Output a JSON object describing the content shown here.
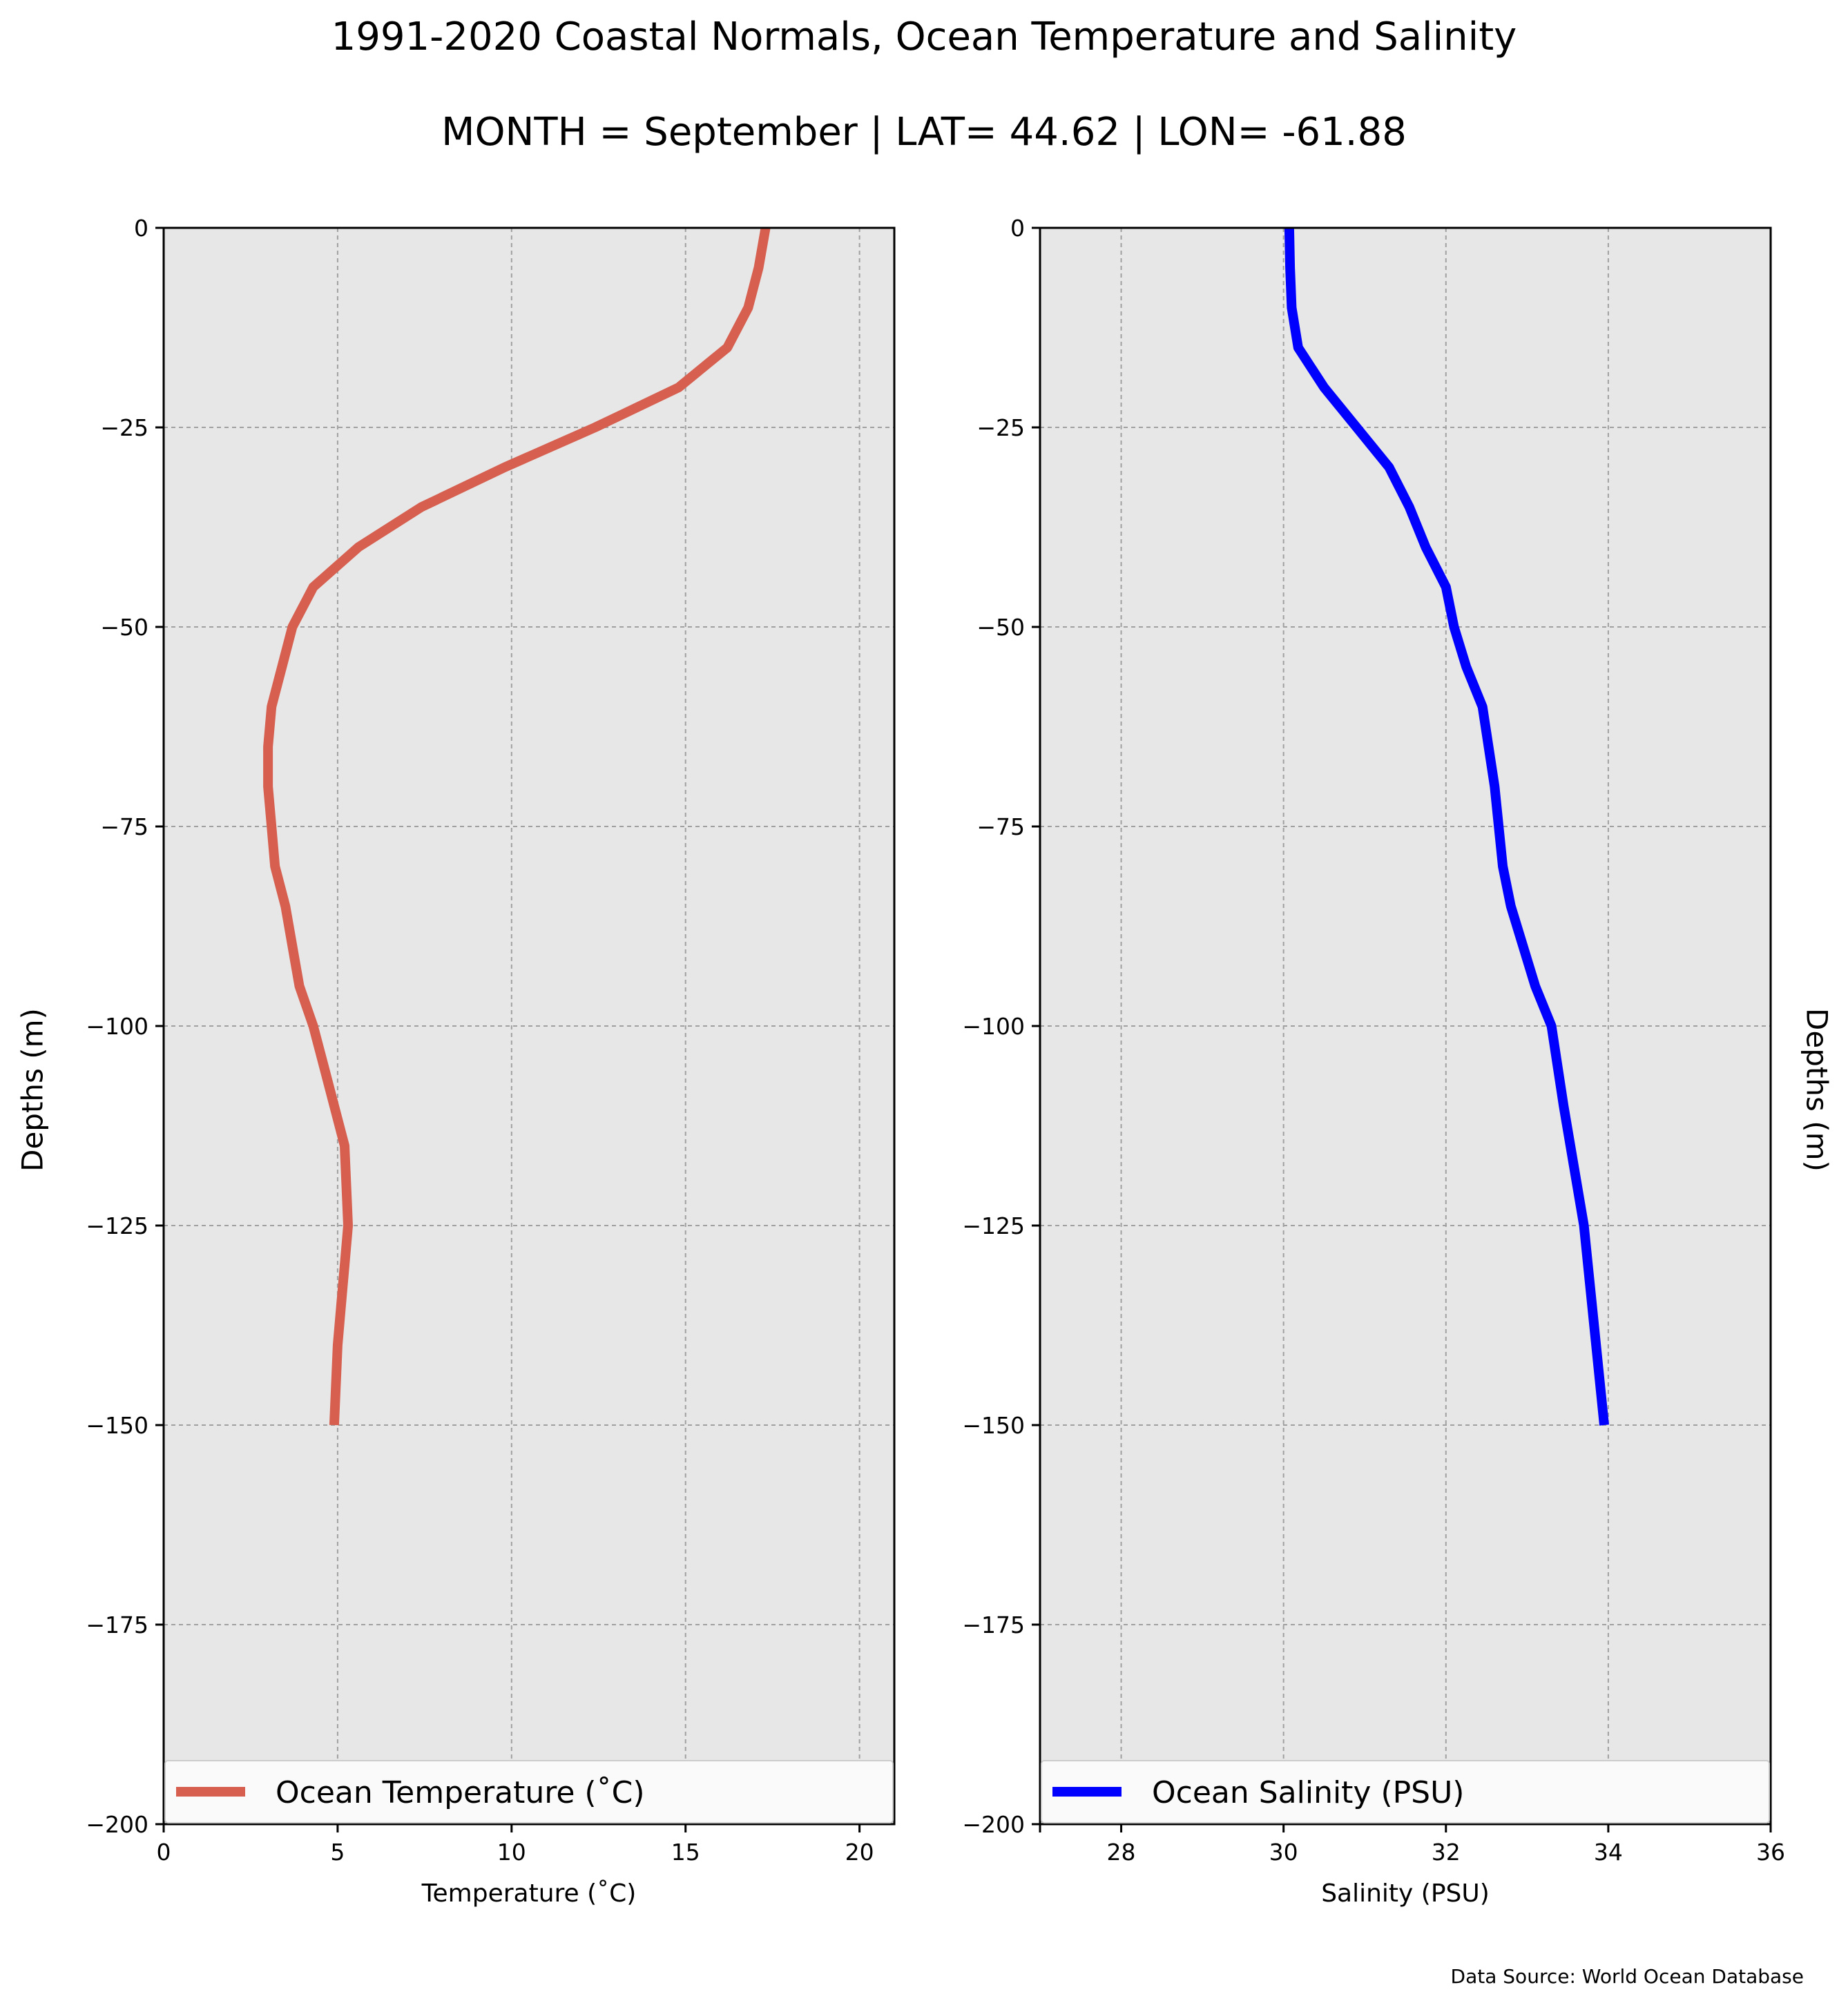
{
  "figure": {
    "title": "1991-2020 Coastal Normals, Ocean Temperature and Salinity",
    "subtitle": "MONTH = September | LAT= 44.62 | LON= -61.88",
    "source": "Data Source: World Ocean Database",
    "background": "#e7e7e7",
    "grid_color": "#a0a0a0"
  },
  "chart_data": [
    {
      "type": "line",
      "xlabel": "Temperature (˚C)",
      "ylabel": "Depths (m)",
      "xlim": [
        0,
        21
      ],
      "ylim": [
        -200,
        0
      ],
      "xticks": [
        0,
        5,
        10,
        15,
        20
      ],
      "yticks": [
        0,
        -25,
        -50,
        -75,
        -100,
        -125,
        -150,
        -175,
        -200
      ],
      "ytick_labels": [
        "0",
        "−25",
        "−50",
        "−75",
        "−100",
        "−125",
        "−150",
        "−175",
        "−200"
      ],
      "grid": true,
      "legend": "bottom",
      "series": [
        {
          "name": "Ocean Temperature (˚C)",
          "color": "#d65f4f",
          "x": [
            17.3,
            17.1,
            16.8,
            16.2,
            14.8,
            12.4,
            9.8,
            7.4,
            5.6,
            4.3,
            3.7,
            3.4,
            3.1,
            3.0,
            3.0,
            3.1,
            3.2,
            3.5,
            3.9,
            4.3,
            4.6,
            4.9,
            5.2,
            5.3,
            5.2,
            5.1,
            5.0,
            4.9
          ],
          "y": [
            0,
            -5,
            -10,
            -15,
            -20,
            -25,
            -30,
            -35,
            -40,
            -45,
            -50,
            -55,
            -60,
            -65,
            -70,
            -75,
            -80,
            -85,
            -95,
            -100,
            -105,
            -110,
            -115,
            -125,
            -130,
            -135,
            -140,
            -150
          ]
        }
      ]
    },
    {
      "type": "line",
      "xlabel": "Salinity (PSU)",
      "ylabel": "Depths (m)",
      "xlim": [
        27,
        36
      ],
      "ylim": [
        -200,
        0
      ],
      "xticks": [
        28,
        30,
        32,
        34,
        36
      ],
      "yticks": [
        0,
        -25,
        -50,
        -75,
        -100,
        -125,
        -150,
        -175,
        -200
      ],
      "ytick_labels": [
        "0",
        "−25",
        "−50",
        "−75",
        "−100",
        "−125",
        "−150",
        "−175",
        "−200"
      ],
      "grid": true,
      "legend": "bottom",
      "series": [
        {
          "name": "Ocean Salinity (PSU)",
          "color": "#0000ff",
          "x": [
            30.07,
            30.08,
            30.1,
            30.18,
            30.5,
            30.9,
            31.3,
            31.55,
            31.75,
            32.0,
            32.1,
            32.25,
            32.45,
            32.6,
            32.7,
            32.8,
            33.1,
            33.3,
            33.45,
            33.7,
            33.95
          ],
          "y": [
            0,
            -5,
            -10,
            -15,
            -20,
            -25,
            -30,
            -35,
            -40,
            -45,
            -50,
            -55,
            -60,
            -70,
            -80,
            -85,
            -95,
            -100,
            -110,
            -125,
            -150
          ]
        }
      ]
    }
  ]
}
